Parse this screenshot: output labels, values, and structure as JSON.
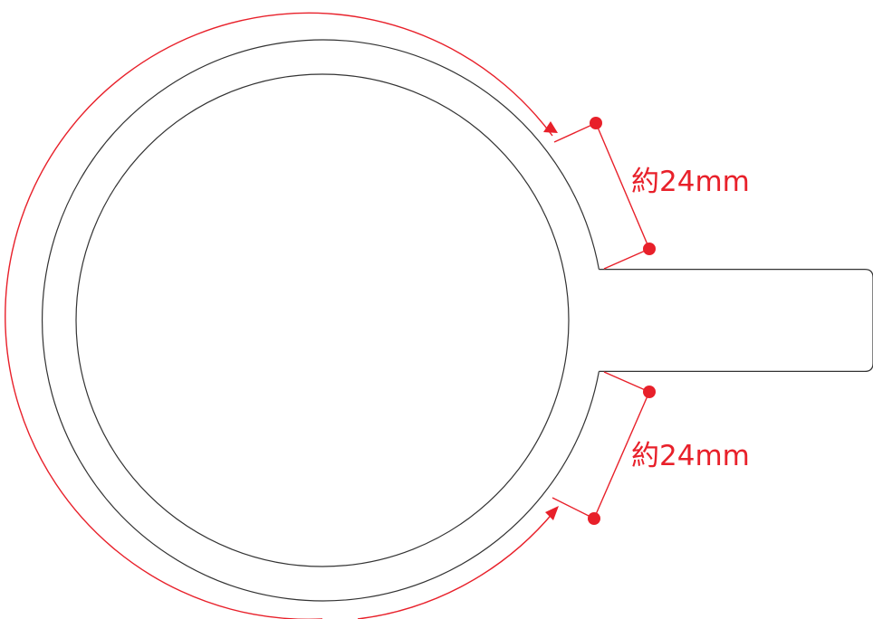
{
  "colors": {
    "outline": "#333333",
    "dimension": "#e8202a",
    "background": "#ffffff"
  },
  "annotations": {
    "top_label": "約24mm",
    "bottom_label": "約24mm"
  }
}
